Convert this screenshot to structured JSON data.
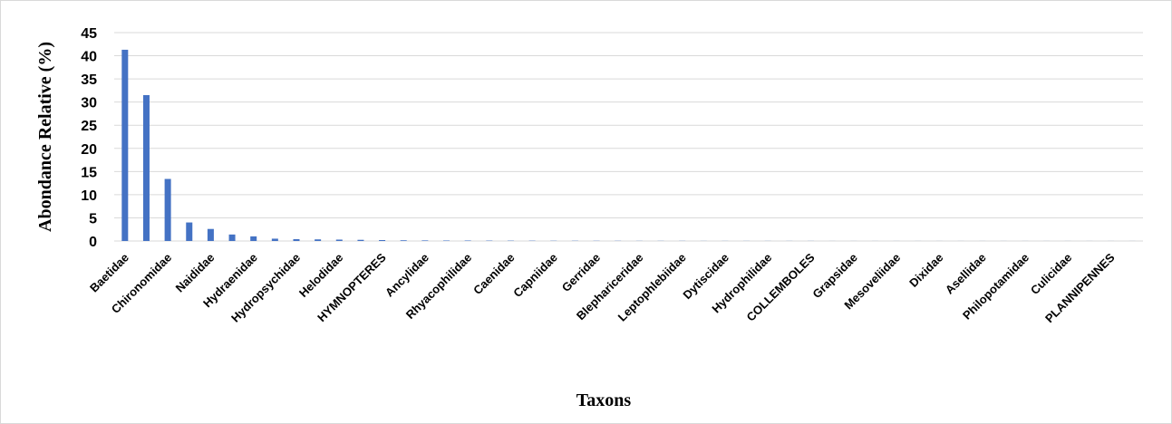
{
  "chart_data": {
    "type": "bar",
    "title": "",
    "xlabel": "Taxons",
    "ylabel": "Abondance Relative (%)",
    "ylim": [
      0,
      45
    ],
    "yticks": [
      0,
      5,
      10,
      15,
      20,
      25,
      30,
      35,
      40,
      45
    ],
    "grid": true,
    "legend": "none",
    "bar_color": "#4472C4",
    "grid_color": "#d9d9d9",
    "categories": [
      "Baetidae",
      "",
      "Chironomidae",
      "",
      "Naididae",
      "",
      "Hydraenidae",
      "",
      "Hydropsychidae",
      "",
      "Helodidae",
      "",
      "HYMNOPTERES",
      "",
      "Ancylidae",
      "",
      "Rhyacophilidae",
      "",
      "Caenidae",
      "",
      "Capniidae",
      "",
      "Gerridae",
      "",
      "Blephariceridae",
      "",
      "Leptophlebiidae",
      "",
      "Dytiscidae",
      "",
      "Hydrophilidae",
      "",
      "COLLEMBOLES",
      "",
      "Grapsidae",
      "",
      "Mesoveliidae",
      "",
      "Dixidae",
      "",
      "Asellidae",
      "",
      "Philopotamidae",
      "",
      "Culicidae",
      "",
      "PLANNIPENNES",
      ""
    ],
    "values": [
      41.3,
      31.5,
      13.4,
      4.0,
      2.6,
      1.4,
      1.0,
      0.5,
      0.4,
      0.35,
      0.3,
      0.25,
      0.2,
      0.15,
      0.12,
      0.1,
      0.1,
      0.08,
      0.07,
      0.06,
      0.05,
      0.05,
      0.04,
      0.04,
      0.03,
      0.03,
      0.03,
      0.02,
      0.02,
      0.02,
      0.02,
      0.02,
      0.02,
      0.01,
      0.01,
      0.01,
      0.01,
      0.01,
      0.01,
      0.01,
      0.01,
      0.01,
      0.01,
      0.01,
      0.01,
      0.01,
      0.01,
      0.01
    ]
  }
}
